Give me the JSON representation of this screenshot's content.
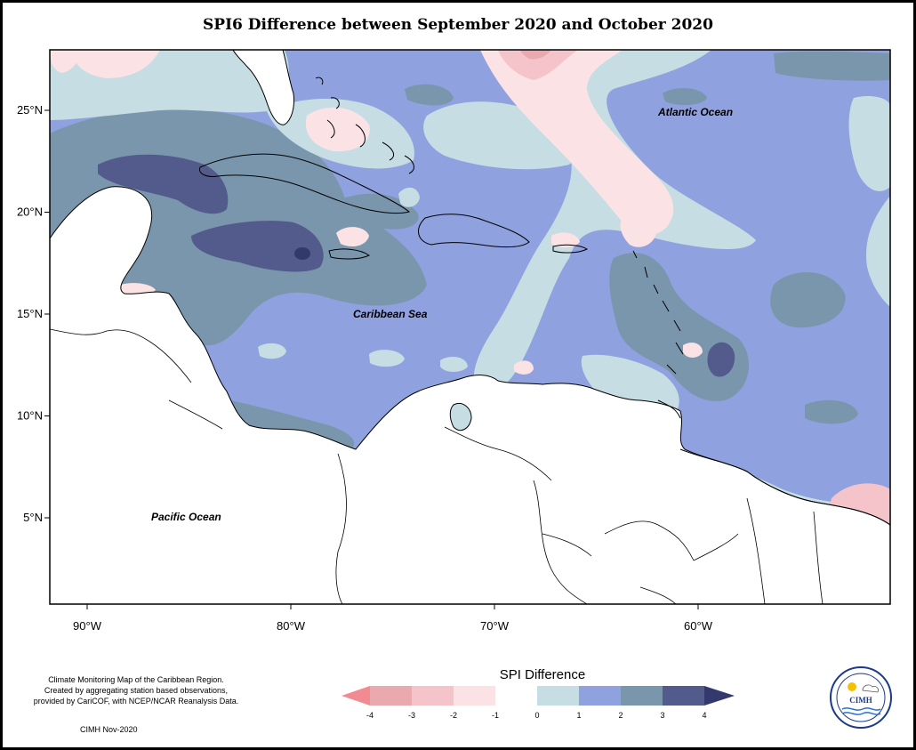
{
  "title": "SPI6 Difference between September 2020 and October 2020",
  "map": {
    "lat_labels": [
      {
        "label": "25°N",
        "value": 25
      },
      {
        "label": "20°N",
        "value": 20
      },
      {
        "label": "15°N",
        "value": 15
      },
      {
        "label": "10°N",
        "value": 10
      },
      {
        "label": "5°N",
        "value": 5
      }
    ],
    "lon_labels": [
      {
        "label": "90°W",
        "value": -90
      },
      {
        "label": "80°W",
        "value": -80
      },
      {
        "label": "70°W",
        "value": -70
      },
      {
        "label": "60°W",
        "value": -60
      }
    ],
    "places": {
      "atlantic": "Atlantic Ocean",
      "caribbean": "Caribbean Sea",
      "pacific": "Pacific Ocean"
    },
    "colors": {
      "ocean_base": "#8fa1de",
      "pos_1": "#c5dde3",
      "pos_2": "#8fa1de",
      "pos_3": "#7a96ad",
      "pos_4": "#525b8b",
      "neg_1": "#fbe3e5",
      "neg_2": "#f5c4ca",
      "neg_3": "#eaa9ae",
      "neg_4": "#f28a92",
      "land": "#ffffff"
    }
  },
  "legend": {
    "title": "SPI Difference",
    "ticks": [
      "-4",
      "-3",
      "-2",
      "-1",
      "0",
      "1",
      "2",
      "3",
      "4"
    ],
    "colors": [
      "#f28a92",
      "#eaa9ae",
      "#f5c4ca",
      "#fbe3e5",
      "#ffffff",
      "#c5dde3",
      "#8fa1de",
      "#7a96ad",
      "#525b8b",
      "#33396d"
    ]
  },
  "credit": {
    "line1": "Climate Monitoring Map of the Caribbean Region.",
    "line2": "Created by aggregating station based observations,",
    "line3": "provided by CariCOF, with NCEP/NCAR Reanalysis Data.",
    "date": "CIMH Nov-2020"
  },
  "logo": {
    "name": "CIMH"
  }
}
